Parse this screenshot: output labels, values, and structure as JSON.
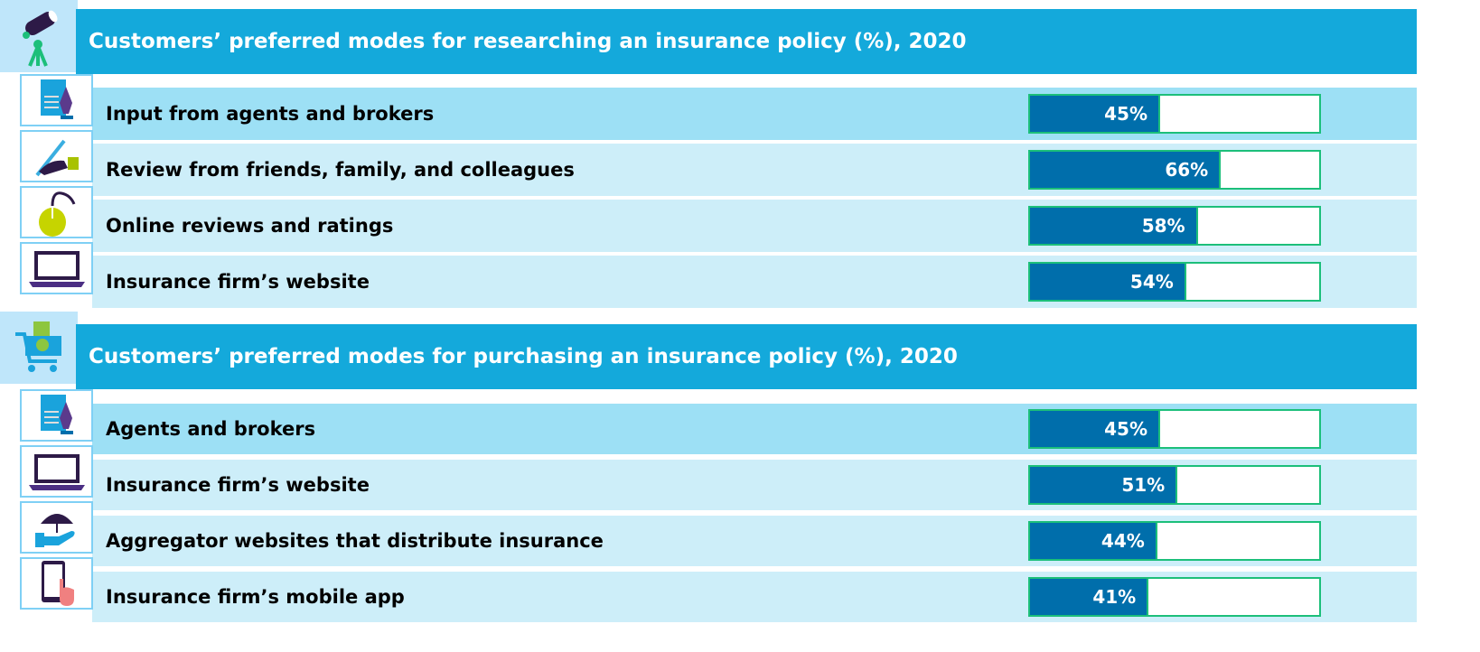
{
  "chart_data": [
    {
      "type": "bar",
      "title": "Customers’ preferred modes for researching an insurance policy (%), 2020",
      "unit": "%",
      "xlim": [
        0,
        100
      ],
      "categories": [
        "Input from agents and brokers",
        "Review from friends, family, and colleagues",
        "Online reviews and ratings",
        "Insurance firm’s website"
      ],
      "values": [
        45,
        66,
        58,
        54
      ],
      "labels": [
        "45%",
        "66%",
        "58%",
        "54%"
      ],
      "icons": [
        "document-pen-icon",
        "hand-writing-icon",
        "mouse-icon",
        "laptop-icon"
      ],
      "header_icon": "telescope-icon"
    },
    {
      "type": "bar",
      "title": "Customers’ preferred modes for purchasing an insurance policy (%), 2020",
      "unit": "%",
      "xlim": [
        0,
        100
      ],
      "categories": [
        "Agents and brokers",
        "Insurance firm’s website",
        "Aggregator websites that distribute insurance",
        "Insurance firm’s mobile app"
      ],
      "values": [
        45,
        51,
        44,
        41
      ],
      "labels": [
        "45%",
        "51%",
        "44%",
        "41%"
      ],
      "icons": [
        "document-pen-icon",
        "laptop-icon",
        "umbrella-hand-icon",
        "mobile-tap-icon"
      ],
      "header_icon": "shopping-cart-icon"
    }
  ],
  "colors": {
    "header": "#14a9db",
    "fill": "#006eab",
    "border": "#1cbf7a",
    "row": "#cdeef9",
    "row_first": "#9de0f5"
  }
}
